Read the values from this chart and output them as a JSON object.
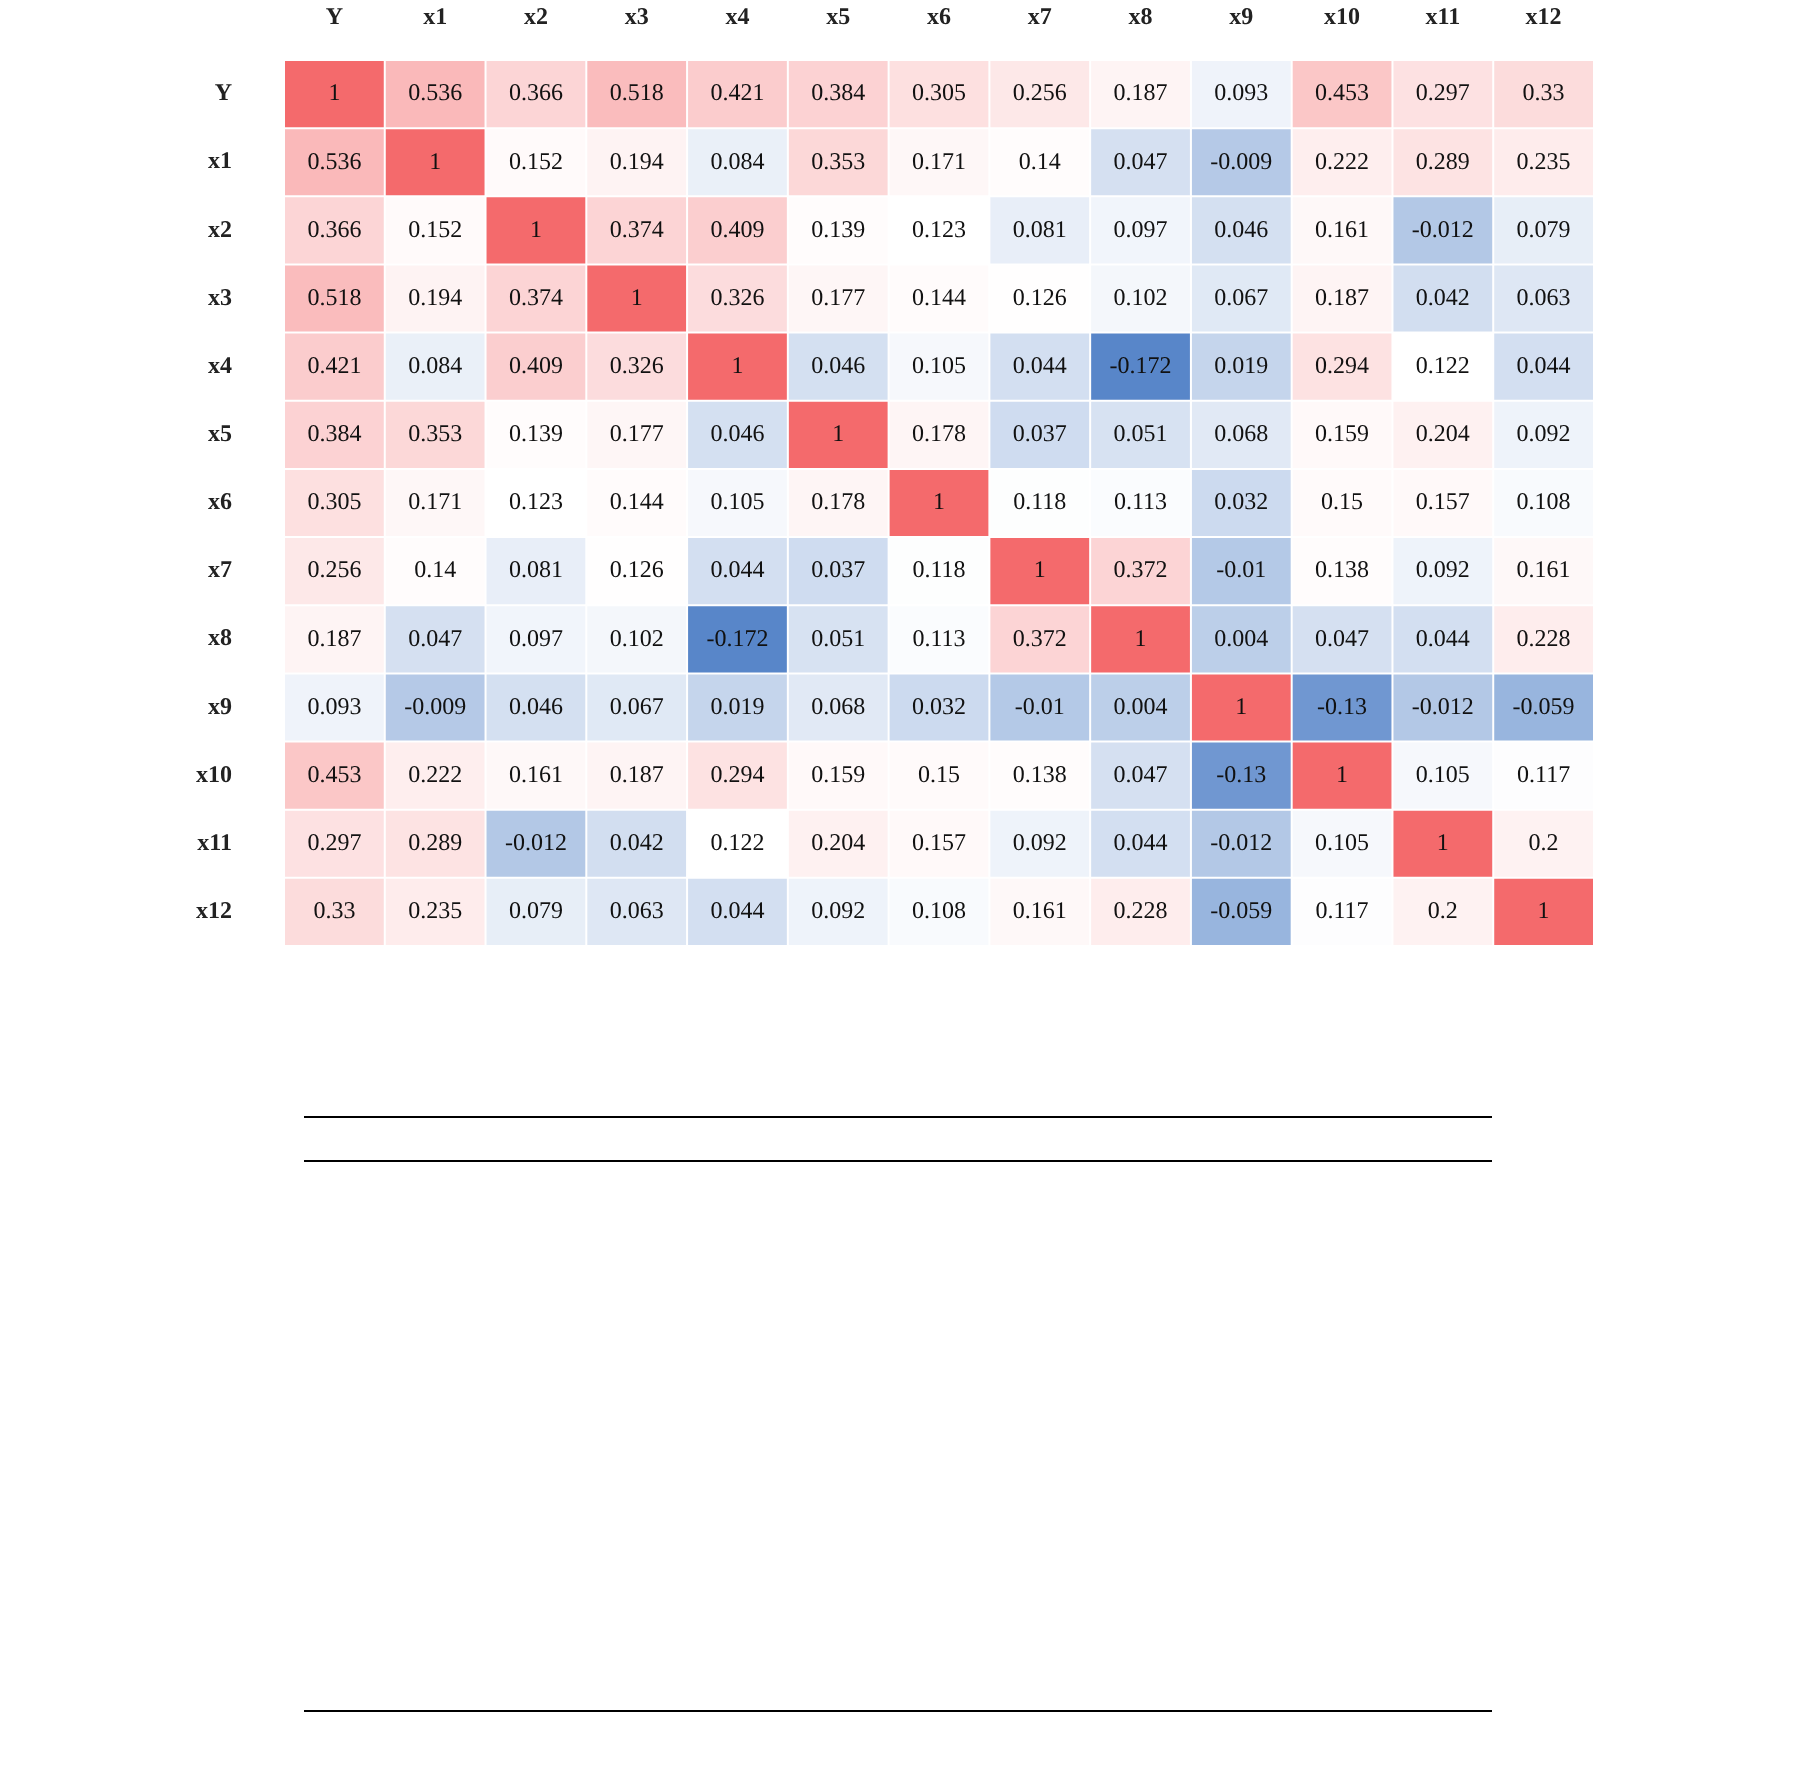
{
  "chart_data": {
    "type": "heatmap",
    "categories": [
      "Y",
      "x1",
      "x2",
      "x3",
      "x4",
      "x5",
      "x6",
      "x7",
      "x8",
      "x9",
      "x10",
      "x11",
      "x12"
    ],
    "y_categories": [
      "Y",
      "x1",
      "x2",
      "x3",
      "x4",
      "x5",
      "x6",
      "x7",
      "x8",
      "x9",
      "x10",
      "x11",
      "x12"
    ],
    "cells": [
      [
        1,
        0.536,
        0.366,
        0.518,
        0.421,
        0.384,
        0.305,
        0.256,
        0.187,
        0.093,
        0.453,
        0.297,
        0.33
      ],
      [
        0.536,
        1,
        0.152,
        0.194,
        0.084,
        0.353,
        0.171,
        0.14,
        0.047,
        -0.009,
        0.222,
        0.289,
        0.235
      ],
      [
        0.366,
        0.152,
        1,
        0.374,
        0.409,
        0.139,
        0.123,
        0.081,
        0.097,
        0.046,
        0.161,
        -0.012,
        0.079
      ],
      [
        0.518,
        0.194,
        0.374,
        1,
        0.326,
        0.177,
        0.144,
        0.126,
        0.102,
        0.067,
        0.187,
        0.042,
        0.063
      ],
      [
        0.421,
        0.084,
        0.409,
        0.326,
        1,
        0.046,
        0.105,
        0.044,
        -0.172,
        0.019,
        0.294,
        0.122,
        0.044
      ],
      [
        0.384,
        0.353,
        0.139,
        0.177,
        0.046,
        1,
        0.178,
        0.037,
        0.051,
        0.068,
        0.159,
        0.204,
        0.092
      ],
      [
        0.305,
        0.171,
        0.123,
        0.144,
        0.105,
        0.178,
        1,
        0.118,
        0.113,
        0.032,
        0.15,
        0.157,
        0.108
      ],
      [
        0.256,
        0.14,
        0.081,
        0.126,
        0.044,
        0.037,
        0.118,
        1,
        0.372,
        -0.01,
        0.138,
        0.092,
        0.161
      ],
      [
        0.187,
        0.047,
        0.097,
        0.102,
        -0.172,
        0.051,
        0.113,
        0.372,
        1,
        0.004,
        0.047,
        0.044,
        0.228
      ],
      [
        0.093,
        -0.009,
        0.046,
        0.067,
        0.019,
        0.068,
        0.032,
        -0.01,
        0.004,
        1,
        -0.13,
        -0.012,
        -0.059
      ],
      [
        0.453,
        0.222,
        0.161,
        0.187,
        0.294,
        0.159,
        0.15,
        0.138,
        0.047,
        -0.13,
        1,
        0.105,
        0.117
      ],
      [
        0.297,
        0.289,
        -0.012,
        0.042,
        0.122,
        0.204,
        0.157,
        0.092,
        0.044,
        -0.012,
        0.105,
        1,
        0.2
      ],
      [
        0.33,
        0.235,
        0.079,
        0.063,
        0.044,
        0.092,
        0.108,
        0.161,
        0.228,
        -0.059,
        0.117,
        0.2,
        1
      ]
    ],
    "data_labels": true
  }
}
